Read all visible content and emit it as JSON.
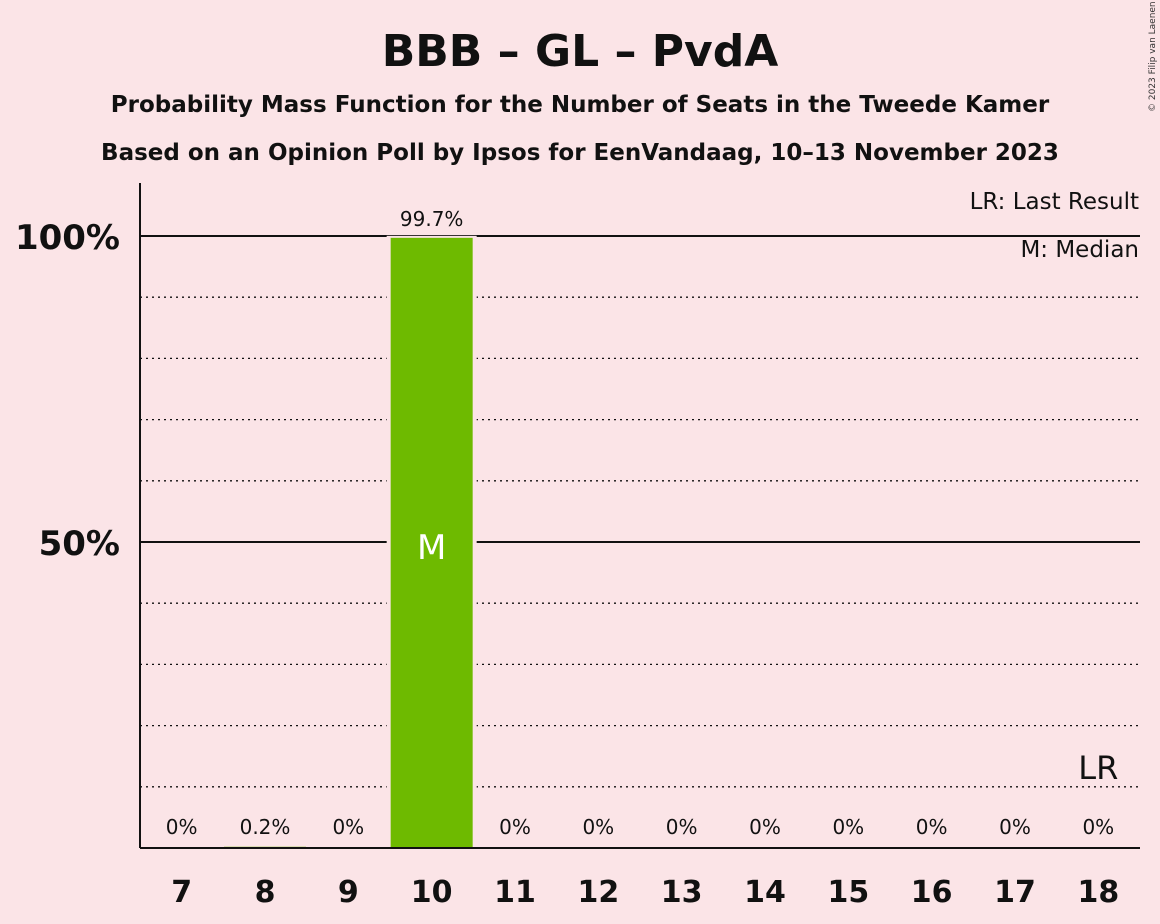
{
  "chart_data": {
    "type": "bar",
    "title": "BBB – GL – PvdA",
    "subtitle_1": "Probability Mass Function for the Number of Seats in the Tweede Kamer",
    "subtitle_2": "Based on an Opinion Poll by Ipsos for EenVandaag, 10–13 November 2023",
    "categories": [
      "7",
      "8",
      "9",
      "10",
      "11",
      "12",
      "13",
      "14",
      "15",
      "16",
      "17",
      "18"
    ],
    "values": [
      0,
      0.2,
      0,
      99.7,
      0,
      0,
      0,
      0,
      0,
      0,
      0,
      0
    ],
    "value_labels": [
      "0%",
      "0.2%",
      "0%",
      "99.7%",
      "0%",
      "0%",
      "0%",
      "0%",
      "0%",
      "0%",
      "0%",
      "0%"
    ],
    "ylim": [
      0,
      100
    ],
    "y_ticks": [
      {
        "value": 50,
        "label": "50%"
      },
      {
        "value": 100,
        "label": "100%"
      }
    ],
    "median_category": "10",
    "median_marker": "M",
    "last_result_category": "18",
    "last_result_marker": "LR",
    "legend": {
      "last_result": "LR: Last Result",
      "median": "M: Median"
    },
    "bar_color": "#6EBA00",
    "copyright": "© 2023 Filip van Laenen"
  }
}
